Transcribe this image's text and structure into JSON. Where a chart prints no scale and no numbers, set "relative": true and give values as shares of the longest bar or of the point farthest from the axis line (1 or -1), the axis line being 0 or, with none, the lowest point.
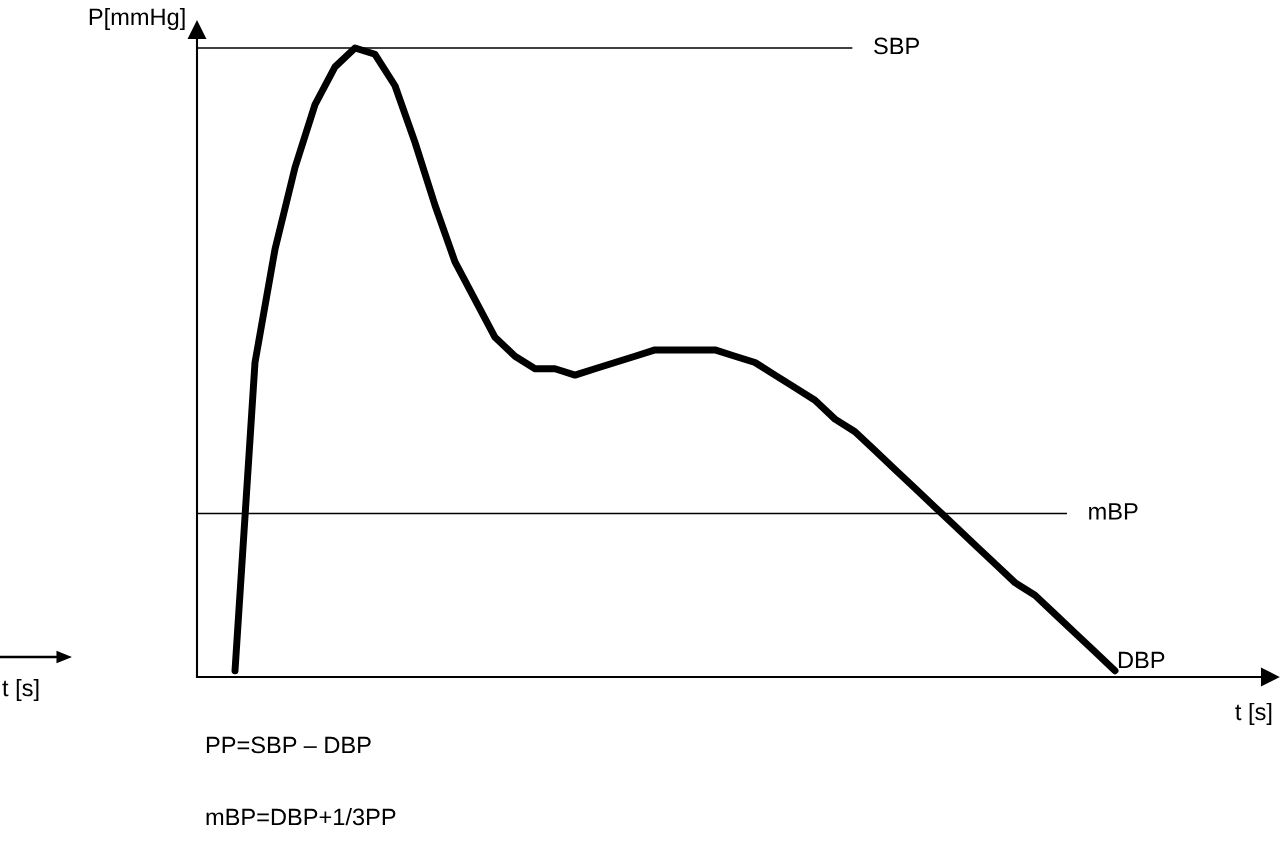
{
  "chart_data": {
    "type": "line",
    "relative": true,
    "ylabel": "P[mmHg]",
    "xlabel": "t [s]",
    "categories": [
      null,
      null,
      null,
      null,
      null,
      null,
      null,
      null,
      null,
      null,
      null,
      null,
      null,
      null,
      null,
      null,
      null,
      null,
      null,
      null,
      null,
      null,
      null,
      null,
      null,
      null,
      null,
      null,
      null,
      null,
      null,
      null,
      null,
      null,
      null,
      null,
      null,
      null,
      null,
      null,
      null,
      null,
      null,
      null,
      null
    ],
    "series": [
      {
        "color": "#000000",
        "values": [
          0.01,
          0.5,
          0.68,
          0.81,
          0.91,
          0.97,
          1.0,
          0.99,
          0.94,
          0.85,
          0.75,
          0.66,
          0.6,
          0.54,
          0.51,
          0.49,
          0.49,
          0.48,
          0.49,
          0.5,
          0.51,
          0.52,
          0.52,
          0.52,
          0.52,
          0.51,
          0.5,
          0.48,
          0.46,
          0.44,
          0.41,
          0.39,
          0.36,
          0.33,
          0.3,
          0.27,
          0.24,
          0.21,
          0.18,
          0.15,
          0.13,
          0.1,
          0.07,
          0.04,
          0.01
        ]
      }
    ],
    "ref_lines": [
      {
        "axis": "y",
        "value": 1.0,
        "label": "SBP",
        "color": "#000000"
      },
      {
        "axis": "y",
        "value": 0.26,
        "label": "mBP",
        "color": "#000000"
      }
    ],
    "annotations": [
      "DBP",
      "t [s]",
      "PP=SBP – DBP",
      "mBP=DBP+1/3PP"
    ],
    "legend": false,
    "marker": "none",
    "line_style": "solid"
  }
}
